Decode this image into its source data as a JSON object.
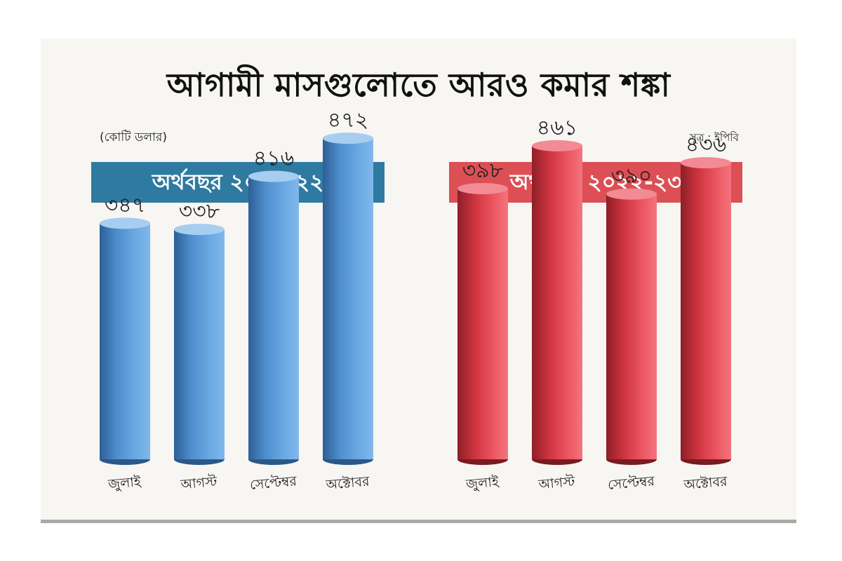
{
  "title": "আগামী মাসগুলোতে আরও কমার শঙ্কা",
  "unit_label": "(কোটি ডলার)",
  "source_label": "সূত্র : ইপিবি",
  "colors": {
    "panel_left": "#2f7aa1",
    "panel_right": "#dc4f55",
    "bar_blue": "#5b9bd5",
    "bar_red": "#e2434f",
    "background": "#f7f6f2"
  },
  "chart_data": [
    {
      "type": "bar",
      "title": "অর্থবছর ২০২১-২২",
      "categories": [
        "জুলাই",
        "আগস্ট",
        "সেপ্টেম্বর",
        "অক্টোবর"
      ],
      "values": [
        347,
        338,
        416,
        472
      ],
      "value_labels": [
        "৩৪৭",
        "৩৩৮",
        "৪১৬",
        "৪৭২"
      ],
      "color": "blue"
    },
    {
      "type": "bar",
      "title": "অর্থবছর ২০২২-২৩",
      "categories": [
        "জুলাই",
        "আগস্ট",
        "সেপ্টেম্বর",
        "অক্টোবর"
      ],
      "values": [
        398,
        461,
        390,
        436
      ],
      "value_labels": [
        "৩৯৮",
        "৪৬১",
        "৩৯০",
        "৪৩৬"
      ],
      "color": "red"
    }
  ]
}
